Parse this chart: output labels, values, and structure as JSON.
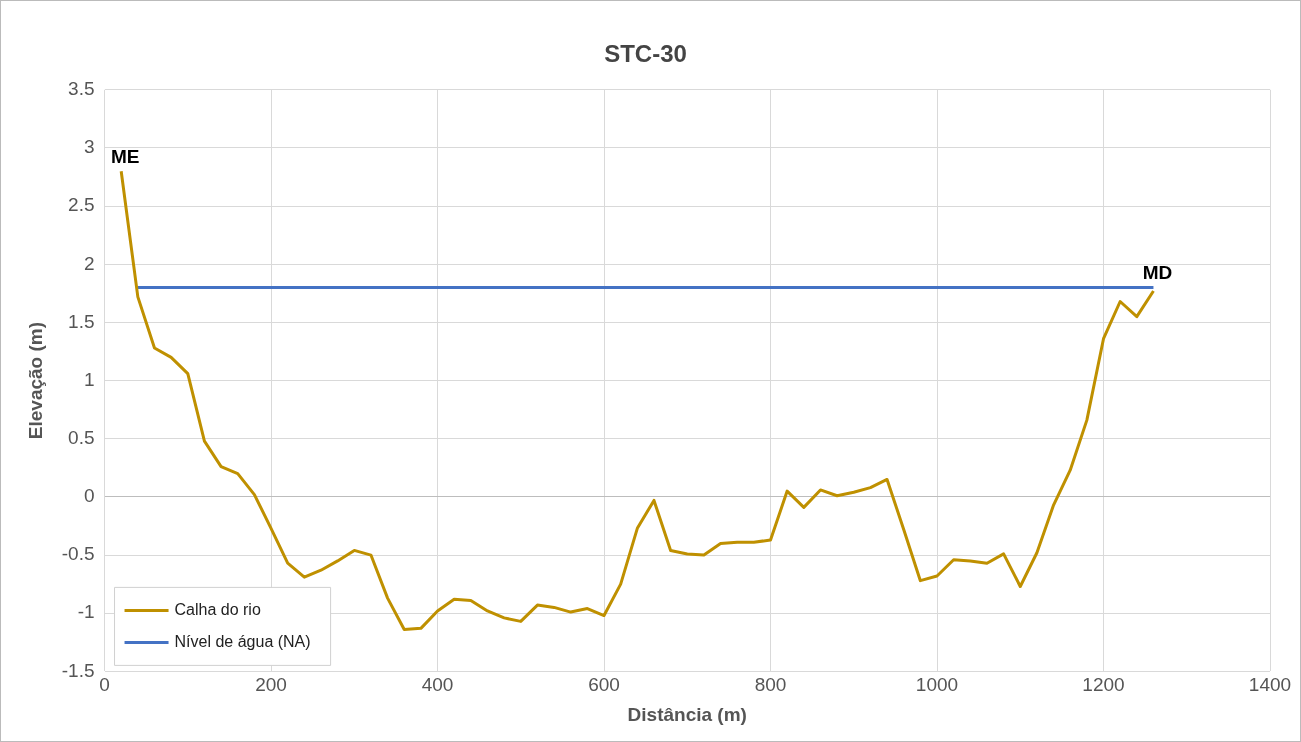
{
  "chart_data": {
    "type": "line",
    "title": "STC-30",
    "xlabel": "Distância (m)",
    "ylabel": "Elevação (m)",
    "xlim": [
      0,
      1400
    ],
    "xticks": [
      0,
      200,
      400,
      600,
      800,
      1000,
      1200,
      1400
    ],
    "ylim": [
      -1.5,
      3.5
    ],
    "yticks": [
      -1.5,
      -1,
      -0.5,
      0,
      0.5,
      1,
      1.5,
      2,
      2.5,
      3,
      3.5
    ],
    "grid": true,
    "legend": "bottom left",
    "marker": "none",
    "line_style": "solid",
    "annotations": [
      {
        "text": "ME",
        "x": 20,
        "y": 2.8
      },
      {
        "text": "MD",
        "x": 1260,
        "y": 1.8
      }
    ],
    "series": [
      {
        "name": "Calha do rio",
        "color": "#bf9000",
        "x": [
          20,
          40,
          60,
          80,
          100,
          120,
          140,
          160,
          180,
          200,
          220,
          240,
          260,
          280,
          300,
          320,
          340,
          360,
          380,
          400,
          420,
          440,
          460,
          480,
          500,
          520,
          540,
          560,
          580,
          600,
          620,
          640,
          660,
          680,
          700,
          720,
          740,
          760,
          780,
          800,
          820,
          840,
          860,
          880,
          900,
          920,
          940,
          960,
          980,
          1000,
          1020,
          1040,
          1060,
          1080,
          1100,
          1120,
          1140,
          1160,
          1180,
          1200,
          1220,
          1240,
          1260
        ],
        "values": [
          2.8,
          1.72,
          1.28,
          1.2,
          1.06,
          0.48,
          0.26,
          0.2,
          0.02,
          -0.27,
          -0.57,
          -0.69,
          -0.63,
          -0.55,
          -0.46,
          -0.5,
          -0.87,
          -1.14,
          -1.13,
          -0.98,
          -0.88,
          -0.89,
          -0.98,
          -1.04,
          -1.07,
          -0.93,
          -0.95,
          -0.99,
          -0.96,
          -1.02,
          -0.75,
          -0.27,
          -0.03,
          -0.46,
          -0.49,
          -0.5,
          -0.4,
          -0.39,
          -0.39,
          -0.37,
          0.05,
          -0.09,
          0.06,
          0.01,
          0.04,
          0.08,
          0.15,
          -0.28,
          -0.72,
          -0.68,
          -0.54,
          -0.55,
          -0.57,
          -0.49,
          -0.77,
          -0.48,
          -0.07,
          0.23,
          0.66,
          1.36,
          1.68,
          1.55,
          1.77
        ]
      },
      {
        "name": "Nível de água (NA)",
        "color": "#4472c4",
        "x": [
          40,
          1260
        ],
        "values": [
          1.8,
          1.8
        ]
      }
    ]
  }
}
